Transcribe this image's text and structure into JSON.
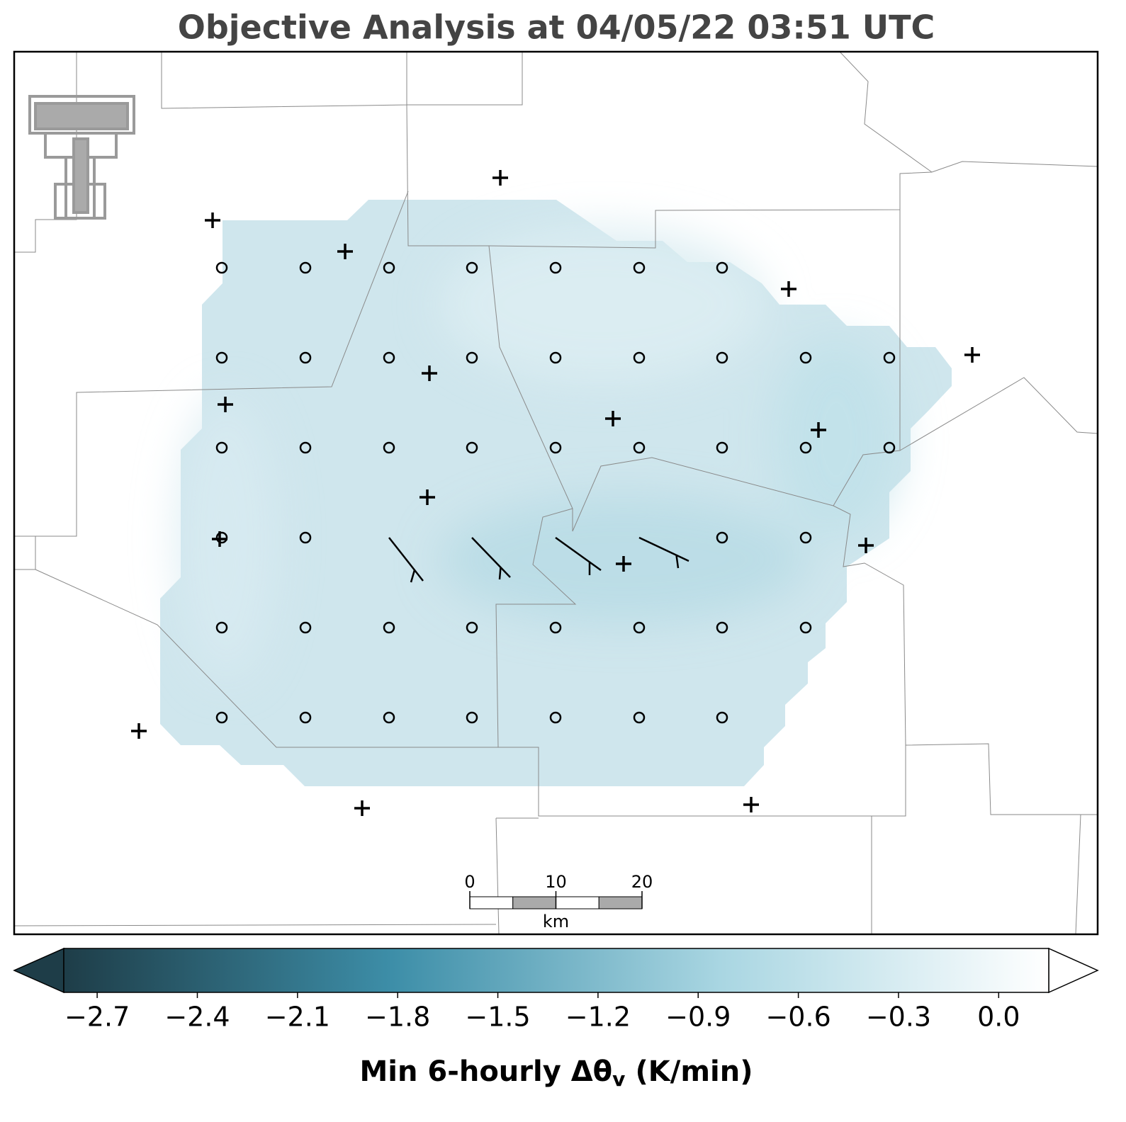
{
  "chart_data": {
    "type": "map",
    "title": "Objective Analysis at 04/05/22 03:51 UTC",
    "colorbar": {
      "label": {
        "main": "Min 6-hourly Δθ",
        "subscript": "v",
        "unit": "(K/min)"
      },
      "clim": [
        -2.8,
        0.15
      ],
      "colormap": [
        "#1e3d48",
        "#3d8ea8",
        "#a9d6e2",
        "#ffffff"
      ],
      "ticks": [
        {
          "value": -2.7,
          "label": "−2.7"
        },
        {
          "value": -2.4,
          "label": "−2.4"
        },
        {
          "value": -2.1,
          "label": "−2.1"
        },
        {
          "value": -1.8,
          "label": "−1.8"
        },
        {
          "value": -1.5,
          "label": "−1.5"
        },
        {
          "value": -1.2,
          "label": "−1.2"
        },
        {
          "value": -0.9,
          "label": "−0.9"
        },
        {
          "value": -0.6,
          "label": "−0.6"
        },
        {
          "value": -0.3,
          "label": "−0.3"
        },
        {
          "value": 0,
          "label": "0.0"
        }
      ]
    },
    "scale_bar": {
      "ticks": [
        0,
        10,
        20
      ],
      "unit": "km"
    }
  }
}
